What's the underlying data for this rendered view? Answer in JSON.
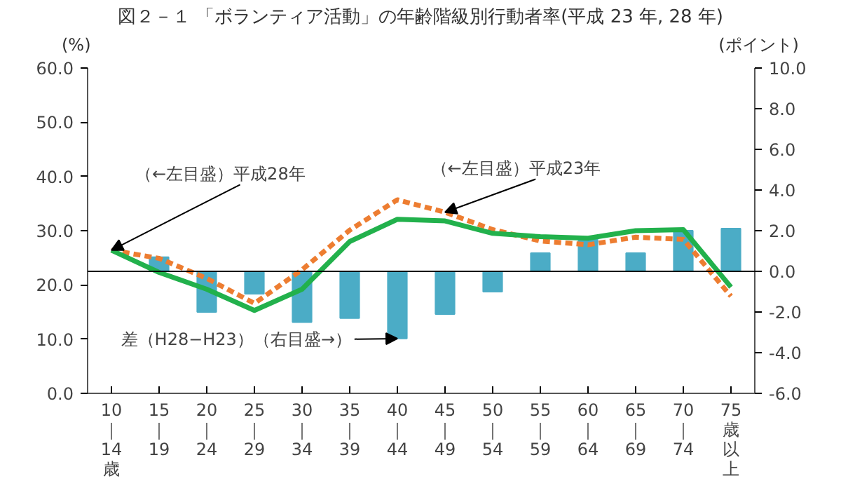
{
  "chart_data": {
    "type": "line",
    "title": "図２－１ 「ボランティア活動」の年齢階級別行動者率(平成 23 年, 28 年)",
    "ylabel": "(%)",
    "y2label": "(ポイント)",
    "categories": [
      "10｜14歳",
      "15｜19",
      "20｜24",
      "25｜29",
      "30｜34",
      "35｜39",
      "40｜44",
      "45｜49",
      "50｜54",
      "55｜59",
      "60｜64",
      "65｜69",
      "70｜74",
      "75歳以上"
    ],
    "series": [
      {
        "type": "bar",
        "axis": "y2",
        "color": "#4bacc6",
        "values": [
          null,
          0.7,
          -2.0,
          -1.1,
          -2.5,
          -2.3,
          -3.3,
          -2.1,
          -1.0,
          0.9,
          1.6,
          0.9,
          2.0,
          2.1
        ]
      },
      {
        "color": "#ed7d31",
        "line_style": "dashed",
        "values": [
          26.4,
          24.9,
          21.2,
          16.6,
          22.8,
          30.1,
          35.7,
          33.4,
          30.2,
          28.1,
          27.4,
          28.8,
          28.4,
          17.9
        ]
      },
      {
        "color": "#22b14c",
        "line_style": "solid",
        "values": [
          26.4,
          22.3,
          19.2,
          15.3,
          19.2,
          28.0,
          32.1,
          31.8,
          29.5,
          28.9,
          28.6,
          30.0,
          30.2,
          19.6
        ]
      }
    ],
    "ylim": [
      0,
      60
    ],
    "yticks": [
      {
        "value": 0,
        "label": "0.0"
      },
      {
        "value": 10,
        "label": "10.0"
      },
      {
        "value": 20,
        "label": "20.0"
      },
      {
        "value": 30,
        "label": "30.0"
      },
      {
        "value": 40,
        "label": "40.0"
      },
      {
        "value": 50,
        "label": "50.0"
      },
      {
        "value": 60,
        "label": "60.0"
      }
    ],
    "y2lim": [
      -6,
      10
    ],
    "y2ticks": [
      {
        "value": -6,
        "label": "-6.0"
      },
      {
        "value": -4,
        "label": "-4.0"
      },
      {
        "value": -2,
        "label": "-2.0"
      },
      {
        "value": 0,
        "label": "0.0"
      },
      {
        "value": 2,
        "label": "2.0"
      },
      {
        "value": 4,
        "label": "4.0"
      },
      {
        "value": 6,
        "label": "6.0"
      },
      {
        "value": 8,
        "label": "8.0"
      },
      {
        "value": 10,
        "label": "10.0"
      }
    ],
    "ref_lines": [
      {
        "axis": "y2",
        "value": 0,
        "color": "#000000"
      }
    ],
    "annotations": [
      {
        "text": "（←左目盛）平成28年",
        "x": "10｜14歳",
        "y": 26.4
      },
      {
        "text": "（←左目盛）平成23年",
        "x": "45｜49",
        "y": 33.4
      },
      {
        "text": "差（H28−H23）（右目盛→）",
        "x": "40｜44",
        "y": 10.1
      }
    ],
    "grid": false
  }
}
